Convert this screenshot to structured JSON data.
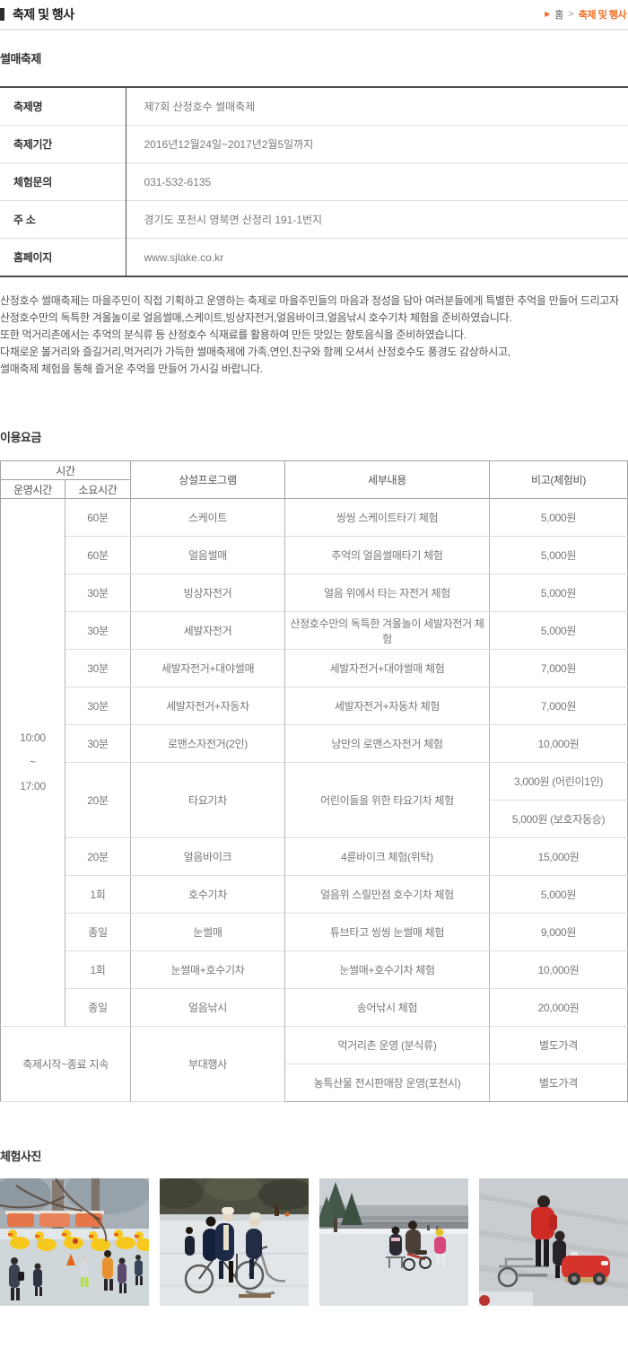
{
  "header": {
    "title": "축제 및 행사",
    "breadcrumb": {
      "arrow": "▶",
      "home": "홈",
      "separator": ">",
      "current": "축제 및 행사"
    }
  },
  "festival": {
    "section_title": "썰매축제",
    "info": [
      {
        "label": "축제명",
        "value": "제7회 산정호수 썰매축제"
      },
      {
        "label": "축제기간",
        "value": "2016년12월24일~2017년2월5일까지"
      },
      {
        "label": "체험문의",
        "value": "031-532-6135"
      },
      {
        "label": "주 소",
        "value": "경기도 포천시 영북면 산정리 191-1번지"
      },
      {
        "label": "홈페이지",
        "value": "www.sjlake.co.kr"
      }
    ],
    "description_lines": [
      "산정호수 썰매축제는 마을주민이 직접 기획하고 운영하는 축제로 마을주민들의 마음과 정성을 담아 여러분들에게 특별한 추억을 만들어 드리고자",
      "산정호수만의 독특한 겨울놀이로 얼음썰매,스케이트,빙상자전거,얼음바이크,얼음낚시 호수기차 체험을  준비하였습니다.",
      "또한 먹거리촌에서는 추억의 분식류 등 산정호수 식재료를 활용하여 만든 맛있는 향토음식을 준비하였습니다.",
      "다채로운 볼거리와 즐길거리,먹거리가 가득한 썰매축제에 가족,연인,친구와 함께 오셔서 산정호수도 풍경도 감상하시고,",
      "썰매축제 체험을 통해 즐거운 추억을 만들어 가시길 바랍니다."
    ]
  },
  "fees": {
    "section_title": "이용요금",
    "table": {
      "headers": {
        "time_group": "시간",
        "operating_time": "운영시간",
        "duration": "소요시간",
        "program": "상설프로그램",
        "detail": "세부내용",
        "note": "비고(체험비)"
      },
      "operating_time_lines": [
        "10:00",
        "~",
        "17:00"
      ],
      "rows": [
        {
          "duration": "60분",
          "program": "스케이트",
          "detail": "씽씽 스케이트타기 체험",
          "prices": [
            "5,000원"
          ]
        },
        {
          "duration": "60분",
          "program": "얼음썰매",
          "detail": "추억의 얼음썰매타기 체험",
          "prices": [
            "5,000원"
          ]
        },
        {
          "duration": "30분",
          "program": "빙상자전거",
          "detail": "얼음 위에서 타는 자전거 체험",
          "prices": [
            "5,000원"
          ]
        },
        {
          "duration": "30분",
          "program": "세발자전거",
          "detail": "산정호수만의 독특한 겨울놀이 세발자전거 체험",
          "prices": [
            "5,000원"
          ]
        },
        {
          "duration": "30분",
          "program": "세발자전거+대야썰매",
          "detail": "세발자전거+대야썰매 체험",
          "prices": [
            "7,000원"
          ]
        },
        {
          "duration": "30분",
          "program": "세발자전거+자동차",
          "detail": "세발자전거+자동차 체험",
          "prices": [
            "7,000원"
          ]
        },
        {
          "duration": "30분",
          "program": "로맨스자전거(2인)",
          "detail": "낭만의 로맨스자전거 체험",
          "prices": [
            "10,000원"
          ]
        },
        {
          "duration": "20분",
          "program": "타요기차",
          "detail": "어린이들을 위한 타요기차 체험",
          "prices": [
            "3,000원 (어린이1인)",
            "5,000원 (보호자동승)"
          ]
        },
        {
          "duration": "20분",
          "program": "얼음바이크",
          "detail": "4륜바이크 체험(위탁)",
          "prices": [
            "15,000원"
          ]
        },
        {
          "duration": "1회",
          "program": "호수기차",
          "detail": "얼음위 스릴만점 호수기차 체험",
          "prices": [
            "5,000원"
          ]
        },
        {
          "duration": "종일",
          "program": "눈썰매",
          "detail": "튜브타고 씽씽 눈썰매 체험",
          "prices": [
            "9,000원"
          ]
        },
        {
          "duration": "1회",
          "program": "눈썰매+호수기차",
          "detail": "눈썰매+호수기차 체험",
          "prices": [
            "10,000원"
          ]
        },
        {
          "duration": "종일",
          "program": "얼음낚시",
          "detail": "송어낚시 체험",
          "prices": [
            "20,000원"
          ]
        }
      ],
      "footer_row": {
        "time": "축제시작~종료 지속",
        "program": "부대행사",
        "items": [
          {
            "detail": "먹거리촌 운영 (분식류)",
            "price": "별도가격"
          },
          {
            "detail": "농특산물 전시판매장 운영(포천시)",
            "price": "별도가격"
          }
        ]
      }
    }
  },
  "photos": {
    "section_title": "체험사진",
    "items": [
      {
        "name": "duck-boats-on-ice"
      },
      {
        "name": "ice-bicycles"
      },
      {
        "name": "ice-sled-trikes"
      },
      {
        "name": "ice-cart-with-toy-car"
      }
    ]
  },
  "colors": {
    "accent_orange": "#f36c21",
    "title_text": "#222222",
    "section_title_text": "#333333",
    "body_text": "#555555",
    "table_text": "#777777",
    "info_border_dark": "#4c4c4c",
    "fee_border_medium": "#a2a2a2",
    "fee_border_light": "#dcdcdc",
    "header_rule": "#e6e6e6"
  }
}
